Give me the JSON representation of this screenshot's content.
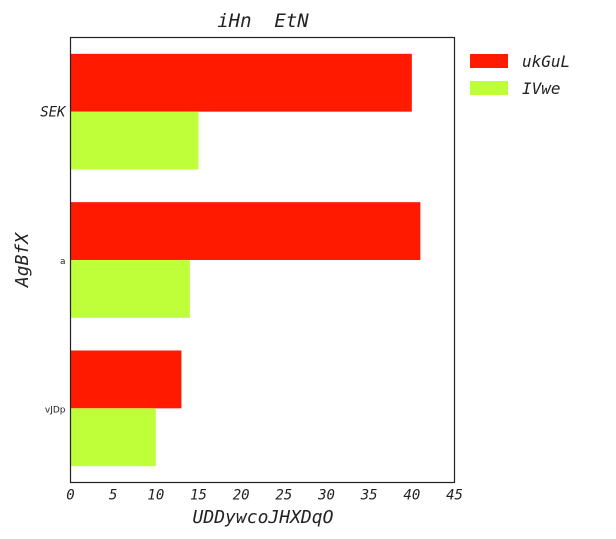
{
  "chart_data": {
    "type": "bar",
    "orientation": "horizontal",
    "title": "iHn  EtN",
    "xlabel": "UDDywcoJHXDqO",
    "ylabel": "AgBfX",
    "categories": [
      "SEK",
      "a",
      "vJDp"
    ],
    "series": [
      {
        "name": "ukGuL",
        "color": "#ff1a00",
        "values": [
          40,
          41,
          13
        ]
      },
      {
        "name": "IVwe",
        "color": "#bfff3a",
        "values": [
          15,
          14,
          10
        ]
      }
    ],
    "xlim": [
      0,
      45
    ],
    "xticks": [
      0,
      5,
      10,
      15,
      20,
      25,
      30,
      35,
      40,
      45
    ],
    "grid": false,
    "legend_position": "outside-top-right"
  }
}
